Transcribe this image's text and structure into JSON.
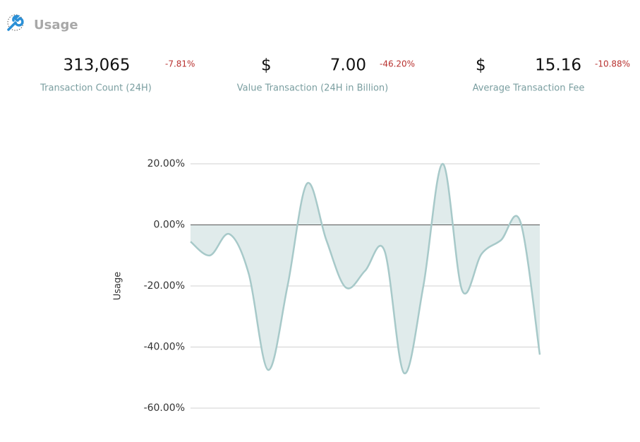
{
  "header": {
    "title": "Usage"
  },
  "stats": [
    {
      "value": "313,065",
      "change": "-7.81%",
      "label": "Transaction Count (24H)"
    },
    {
      "currency": "$",
      "value": "7.00",
      "change": "-46.20%",
      "label": "Value Transaction (24H in Billion)"
    },
    {
      "currency": "$",
      "value": "15.16",
      "change": "-10.88%",
      "label": "Average Transaction Fee"
    }
  ],
  "chart_data": {
    "type": "area",
    "y_label": "Usage",
    "values": [
      -5.5,
      -10,
      -3,
      -16,
      -47.5,
      -20,
      13.5,
      -5,
      -20.5,
      -15,
      -8.5,
      -48.5,
      -20,
      20,
      -21.5,
      -9.5,
      -5,
      1,
      -42.5
    ],
    "color": "#a7c9c9",
    "fill": "#e0ebeb",
    "ylim": [
      -60,
      20
    ],
    "yticks": [
      {
        "value": 20,
        "label": "20.00%"
      },
      {
        "value": 0,
        "label": "0.00%"
      },
      {
        "value": -20,
        "label": "-20.00%"
      },
      {
        "value": -40,
        "label": "-40.00%"
      },
      {
        "value": -60,
        "label": "-60.00%"
      }
    ],
    "grid": true
  }
}
